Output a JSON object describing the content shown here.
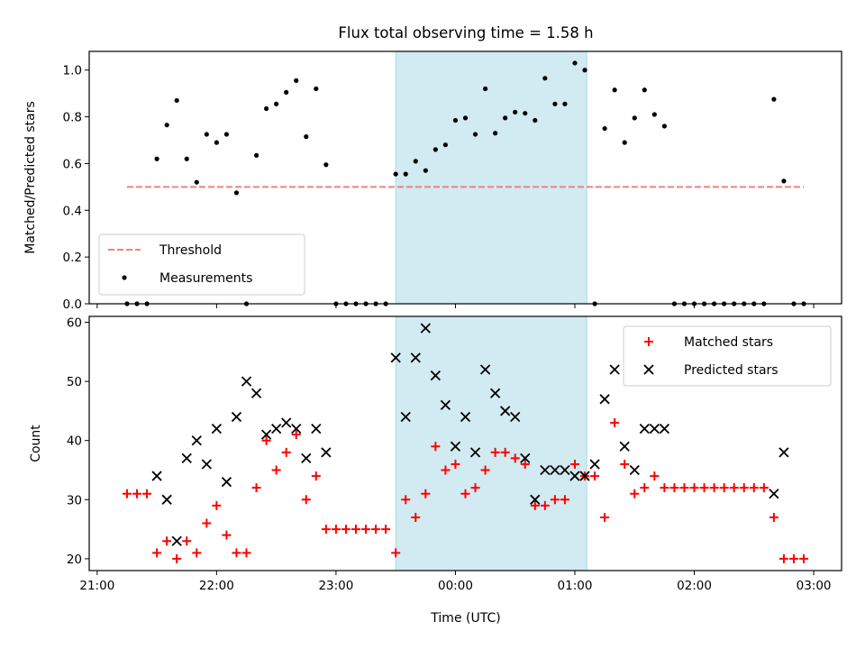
{
  "chart_data": {
    "type": "scatter",
    "title": "Flux total observing time = 1.58 h",
    "xlabel": "Time (UTC)",
    "x_ticks": [
      "21:00",
      "22:00",
      "23:00",
      "00:00",
      "01:00",
      "02:00",
      "03:00"
    ],
    "highlight_span": {
      "start": "23:30",
      "end": "01:06",
      "color": "#add8e6"
    },
    "colors": {
      "threshold": "#f08080",
      "measurements": "#000000",
      "matched": "#ff0000",
      "predicted": "#000000",
      "span": "#add8e6"
    },
    "panels": [
      {
        "id": "ratio",
        "ylabel": "Matched/Predicted stars",
        "ylim": [
          0.0,
          1.08
        ],
        "yticks": [
          "0.0",
          "0.2",
          "0.4",
          "0.6",
          "0.8",
          "1.0"
        ],
        "legend_position": "lower-left",
        "series": [
          {
            "name": "Threshold",
            "kind": "line",
            "style": "dashed",
            "x": [
              "21:15",
              "02:55"
            ],
            "y": [
              0.5,
              0.5
            ]
          },
          {
            "name": "Measurements",
            "kind": "scatter",
            "marker": "dot",
            "x": [
              "21:15",
              "21:20",
              "21:25",
              "21:30",
              "21:35",
              "21:40",
              "21:45",
              "21:50",
              "21:55",
              "22:00",
              "22:05",
              "22:10",
              "22:15",
              "22:20",
              "22:25",
              "22:30",
              "22:35",
              "22:40",
              "22:45",
              "22:50",
              "22:55",
              "23:00",
              "23:05",
              "23:10",
              "23:15",
              "23:20",
              "23:25",
              "23:30",
              "23:35",
              "23:40",
              "23:45",
              "23:50",
              "23:55",
              "00:00",
              "00:05",
              "00:10",
              "00:15",
              "00:20",
              "00:25",
              "00:30",
              "00:35",
              "00:40",
              "00:45",
              "00:50",
              "00:55",
              "01:00",
              "01:05",
              "01:10",
              "01:15",
              "01:20",
              "01:25",
              "01:30",
              "01:35",
              "01:40",
              "01:45",
              "01:50",
              "01:55",
              "02:00",
              "02:05",
              "02:10",
              "02:15",
              "02:20",
              "02:25",
              "02:30",
              "02:35",
              "02:40",
              "02:45",
              "02:50",
              "02:55"
            ],
            "y": [
              0.0,
              0.0,
              0.0,
              0.62,
              0.765,
              0.87,
              0.62,
              0.52,
              0.725,
              0.69,
              0.725,
              0.475,
              0.0,
              0.635,
              0.835,
              0.855,
              0.905,
              0.955,
              0.715,
              0.92,
              0.595,
              0.0,
              0.0,
              0.0,
              0.0,
              0.0,
              0.0,
              0.555,
              0.555,
              0.61,
              0.57,
              0.66,
              0.68,
              0.785,
              0.795,
              0.725,
              0.92,
              0.73,
              0.795,
              0.82,
              0.815,
              0.785,
              0.965,
              0.855,
              0.855,
              1.03,
              1.0,
              0.0,
              0.75,
              0.915,
              0.69,
              0.795,
              0.915,
              0.81,
              0.76,
              0.0,
              0.0,
              0.0,
              0.0,
              0.0,
              0.0,
              0.0,
              0.0,
              0.0,
              0.0,
              0.875,
              0.525,
              0.0,
              0.0
            ]
          }
        ]
      },
      {
        "id": "counts",
        "ylabel": "Count",
        "ylim": [
          18,
          61
        ],
        "yticks": [
          "20",
          "30",
          "40",
          "50",
          "60"
        ],
        "legend_position": "upper-right",
        "series": [
          {
            "name": "Matched stars",
            "kind": "scatter",
            "marker": "plus",
            "x": [
              "21:15",
              "21:20",
              "21:25",
              "21:30",
              "21:35",
              "21:40",
              "21:45",
              "21:50",
              "21:55",
              "22:00",
              "22:05",
              "22:10",
              "22:15",
              "22:20",
              "22:25",
              "22:30",
              "22:35",
              "22:40",
              "22:45",
              "22:50",
              "22:55",
              "23:00",
              "23:05",
              "23:10",
              "23:15",
              "23:20",
              "23:25",
              "23:30",
              "23:35",
              "23:40",
              "23:45",
              "23:50",
              "23:55",
              "00:00",
              "00:05",
              "00:10",
              "00:15",
              "00:20",
              "00:25",
              "00:30",
              "00:35",
              "00:40",
              "00:45",
              "00:50",
              "00:55",
              "01:00",
              "01:05",
              "01:10",
              "01:15",
              "01:20",
              "01:25",
              "01:30",
              "01:35",
              "01:40",
              "01:45",
              "01:50",
              "01:55",
              "02:00",
              "02:05",
              "02:10",
              "02:15",
              "02:20",
              "02:25",
              "02:30",
              "02:35",
              "02:40",
              "02:45",
              "02:50",
              "02:55"
            ],
            "y": [
              31,
              31,
              31,
              21,
              23,
              20,
              23,
              21,
              26,
              29,
              24,
              21,
              21,
              32,
              40,
              35,
              38,
              41,
              30,
              34,
              25,
              25,
              25,
              25,
              25,
              25,
              25,
              21,
              30,
              27,
              31,
              39,
              35,
              36,
              31,
              32,
              35,
              38,
              38,
              37,
              36,
              29,
              29,
              30,
              30,
              36,
              34,
              34,
              27,
              43,
              36,
              31,
              32,
              34,
              32,
              32,
              32,
              32,
              32,
              32,
              32,
              32,
              32,
              32,
              32,
              27,
              20,
              20,
              20
            ]
          },
          {
            "name": "Predicted stars",
            "kind": "scatter",
            "marker": "x",
            "x": [
              "21:30",
              "21:35",
              "21:40",
              "21:45",
              "21:50",
              "21:55",
              "22:00",
              "22:05",
              "22:10",
              "22:15",
              "22:20",
              "22:25",
              "22:30",
              "22:35",
              "22:40",
              "22:45",
              "22:50",
              "22:55",
              "23:30",
              "23:35",
              "23:40",
              "23:45",
              "23:50",
              "23:55",
              "00:00",
              "00:05",
              "00:10",
              "00:15",
              "00:20",
              "00:25",
              "00:30",
              "00:35",
              "00:40",
              "00:45",
              "00:50",
              "00:55",
              "01:00",
              "01:05",
              "01:10",
              "01:15",
              "01:20",
              "01:25",
              "01:30",
              "01:35",
              "01:40",
              "01:45",
              "02:40",
              "02:45"
            ],
            "y": [
              34,
              30,
              23,
              37,
              40,
              36,
              42,
              33,
              44,
              50,
              48,
              41,
              42,
              43,
              42,
              37,
              42,
              38,
              54,
              44,
              54,
              59,
              51,
              46,
              39,
              44,
              38,
              52,
              48,
              45,
              44,
              37,
              30,
              35,
              35,
              35,
              34,
              34,
              36,
              47,
              52,
              39,
              35,
              42,
              42,
              42,
              31,
              38
            ]
          }
        ]
      }
    ]
  }
}
